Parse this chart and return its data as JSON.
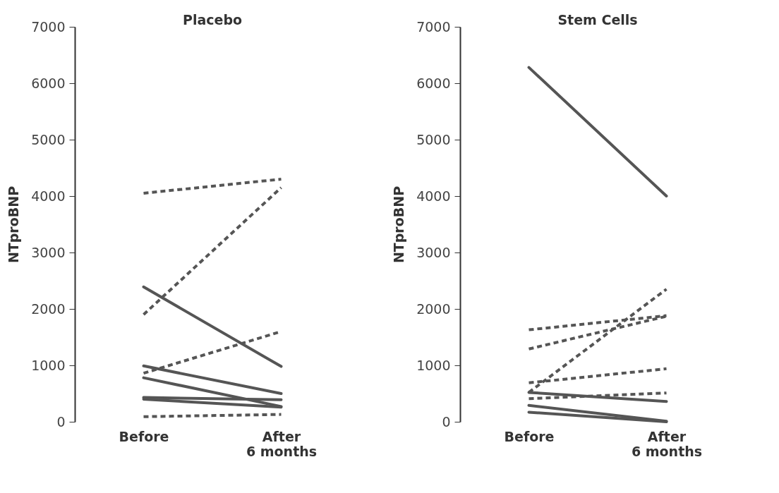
{
  "chart_data": [
    {
      "type": "line",
      "title": "Placebo",
      "ylabel": "NTproBNP",
      "categories": [
        "Before",
        "After\n6 months"
      ],
      "ylim": [
        0,
        7000
      ],
      "yticks": [
        0,
        1000,
        2000,
        3000,
        4000,
        5000,
        6000,
        7000
      ],
      "grid": false,
      "series": [
        {
          "color": "#555555",
          "line_style": "dashed",
          "values": [
            4050,
            4300
          ]
        },
        {
          "color": "#555555",
          "line_style": "dashed",
          "values": [
            1900,
            4150
          ]
        },
        {
          "color": "#555555",
          "line_style": "solid",
          "values": [
            2390,
            980
          ]
        },
        {
          "color": "#555555",
          "line_style": "dashed",
          "values": [
            860,
            1600
          ]
        },
        {
          "color": "#555555",
          "line_style": "solid",
          "values": [
            990,
            500
          ]
        },
        {
          "color": "#555555",
          "line_style": "solid",
          "values": [
            780,
            270
          ]
        },
        {
          "color": "#555555",
          "line_style": "solid",
          "values": [
            430,
            390
          ]
        },
        {
          "color": "#555555",
          "line_style": "solid",
          "values": [
            400,
            260
          ]
        },
        {
          "color": "#555555",
          "line_style": "dashed",
          "values": [
            90,
            130
          ]
        }
      ]
    },
    {
      "type": "line",
      "title": "Stem Cells",
      "ylabel": "NTproBNP",
      "categories": [
        "Before",
        "After\n6 months"
      ],
      "ylim": [
        0,
        7000
      ],
      "yticks": [
        0,
        1000,
        2000,
        3000,
        4000,
        5000,
        6000,
        7000
      ],
      "grid": false,
      "series": [
        {
          "color": "#555555",
          "line_style": "solid",
          "values": [
            6280,
            4000
          ]
        },
        {
          "color": "#555555",
          "line_style": "dashed",
          "values": [
            1630,
            1880
          ]
        },
        {
          "color": "#555555",
          "line_style": "dashed",
          "values": [
            1290,
            1870
          ]
        },
        {
          "color": "#555555",
          "line_style": "dashed",
          "values": [
            520,
            2350
          ]
        },
        {
          "color": "#555555",
          "line_style": "dashed",
          "values": [
            690,
            940
          ]
        },
        {
          "color": "#555555",
          "line_style": "dashed",
          "values": [
            410,
            510
          ]
        },
        {
          "color": "#555555",
          "line_style": "solid",
          "values": [
            520,
            360
          ]
        },
        {
          "color": "#555555",
          "line_style": "solid",
          "values": [
            290,
            10
          ]
        },
        {
          "color": "#555555",
          "line_style": "solid",
          "values": [
            170,
            0
          ]
        }
      ]
    }
  ]
}
